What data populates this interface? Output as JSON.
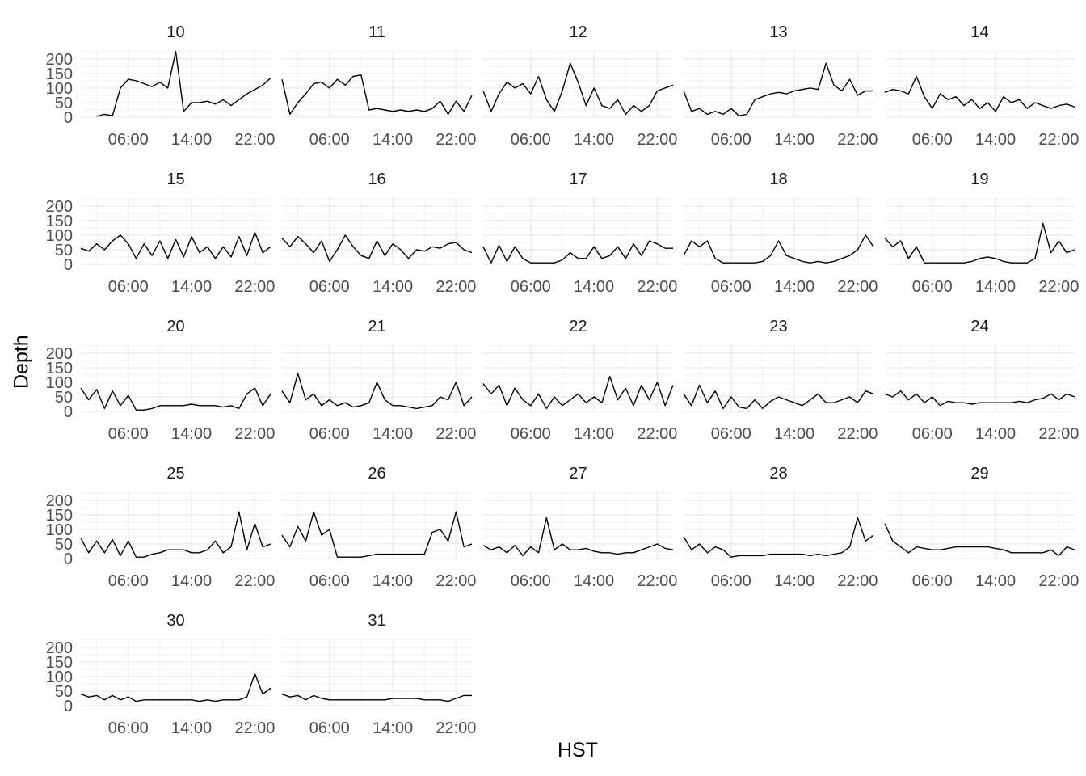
{
  "chart_data": {
    "type": "line",
    "title": "",
    "xlabel": "HST",
    "ylabel": "Depth",
    "grid": true,
    "legend": "none",
    "ylim": [
      0,
      230
    ],
    "yticks": [
      0,
      50,
      100,
      150,
      200
    ],
    "xlim": [
      0,
      24
    ],
    "xticks": [
      6,
      14,
      22
    ],
    "xtick_labels": [
      "06:00",
      "14:00",
      "22:00"
    ],
    "line_color": "#000000",
    "panels": [
      {
        "label": "10",
        "x": [
          0,
          1,
          2,
          3,
          4,
          5,
          6,
          7,
          8,
          9,
          10,
          11,
          12,
          13,
          14,
          15,
          16,
          17,
          18,
          19,
          20,
          21,
          22,
          23,
          24
        ],
        "y": [
          null,
          null,
          3,
          10,
          5,
          100,
          130,
          125,
          115,
          105,
          120,
          100,
          225,
          20,
          50,
          50,
          55,
          45,
          60,
          40,
          60,
          80,
          95,
          110,
          135
        ]
      },
      {
        "label": "11",
        "x": [
          0,
          1,
          2,
          3,
          4,
          5,
          6,
          7,
          8,
          9,
          10,
          11,
          12,
          13,
          14,
          15,
          16,
          17,
          18,
          19,
          20,
          21,
          22,
          23,
          24
        ],
        "y": [
          130,
          10,
          50,
          80,
          115,
          120,
          100,
          130,
          110,
          140,
          145,
          25,
          30,
          25,
          20,
          25,
          20,
          25,
          20,
          30,
          55,
          10,
          55,
          20,
          75
        ]
      },
      {
        "label": "12",
        "x": [
          0,
          1,
          2,
          3,
          4,
          5,
          6,
          7,
          8,
          9,
          10,
          11,
          12,
          13,
          14,
          15,
          16,
          17,
          18,
          19,
          20,
          21,
          22,
          23,
          24
        ],
        "y": [
          90,
          20,
          80,
          120,
          100,
          115,
          80,
          140,
          60,
          20,
          90,
          185,
          120,
          40,
          100,
          40,
          30,
          60,
          10,
          40,
          20,
          40,
          90,
          100,
          110
        ]
      },
      {
        "label": "13",
        "x": [
          0,
          1,
          2,
          3,
          4,
          5,
          6,
          7,
          8,
          9,
          10,
          11,
          12,
          13,
          14,
          15,
          16,
          17,
          18,
          19,
          20,
          21,
          22,
          23,
          24
        ],
        "y": [
          90,
          20,
          30,
          10,
          20,
          10,
          30,
          5,
          10,
          60,
          70,
          80,
          85,
          80,
          90,
          95,
          100,
          95,
          185,
          110,
          90,
          130,
          75,
          90,
          90
        ]
      },
      {
        "label": "14",
        "x": [
          0,
          1,
          2,
          3,
          4,
          5,
          6,
          7,
          8,
          9,
          10,
          11,
          12,
          13,
          14,
          15,
          16,
          17,
          18,
          19,
          20,
          21,
          22,
          23,
          24
        ],
        "y": [
          85,
          95,
          90,
          80,
          140,
          70,
          30,
          80,
          60,
          70,
          40,
          60,
          30,
          50,
          20,
          70,
          50,
          60,
          30,
          50,
          40,
          30,
          40,
          45,
          35
        ]
      },
      {
        "label": "15",
        "x": [
          0,
          1,
          2,
          3,
          4,
          5,
          6,
          7,
          8,
          9,
          10,
          11,
          12,
          13,
          14,
          15,
          16,
          17,
          18,
          19,
          20,
          21,
          22,
          23,
          24
        ],
        "y": [
          55,
          45,
          70,
          50,
          80,
          100,
          70,
          20,
          70,
          30,
          80,
          20,
          85,
          25,
          95,
          40,
          60,
          20,
          60,
          25,
          95,
          30,
          110,
          40,
          60
        ]
      },
      {
        "label": "16",
        "x": [
          0,
          1,
          2,
          3,
          4,
          5,
          6,
          7,
          8,
          9,
          10,
          11,
          12,
          13,
          14,
          15,
          16,
          17,
          18,
          19,
          20,
          21,
          22,
          23,
          24
        ],
        "y": [
          90,
          60,
          95,
          70,
          40,
          80,
          10,
          50,
          100,
          60,
          30,
          20,
          80,
          30,
          70,
          50,
          20,
          50,
          45,
          60,
          55,
          70,
          75,
          50,
          40
        ]
      },
      {
        "label": "17",
        "x": [
          0,
          1,
          2,
          3,
          4,
          5,
          6,
          7,
          8,
          9,
          10,
          11,
          12,
          13,
          14,
          15,
          16,
          17,
          18,
          19,
          20,
          21,
          22,
          23,
          24
        ],
        "y": [
          60,
          5,
          65,
          10,
          60,
          20,
          5,
          5,
          5,
          5,
          15,
          40,
          20,
          20,
          60,
          20,
          30,
          60,
          20,
          70,
          30,
          80,
          70,
          55,
          55
        ]
      },
      {
        "label": "18",
        "x": [
          0,
          1,
          2,
          3,
          4,
          5,
          6,
          7,
          8,
          9,
          10,
          11,
          12,
          13,
          14,
          15,
          16,
          17,
          18,
          19,
          20,
          21,
          22,
          23,
          24
        ],
        "y": [
          30,
          80,
          60,
          80,
          20,
          5,
          5,
          5,
          5,
          5,
          10,
          30,
          80,
          30,
          20,
          10,
          5,
          10,
          5,
          10,
          20,
          30,
          50,
          100,
          60
        ]
      },
      {
        "label": "19",
        "x": [
          0,
          1,
          2,
          3,
          4,
          5,
          6,
          7,
          8,
          9,
          10,
          11,
          12,
          13,
          14,
          15,
          16,
          17,
          18,
          19,
          20,
          21,
          22,
          23,
          24
        ],
        "y": [
          90,
          60,
          80,
          20,
          60,
          5,
          5,
          5,
          5,
          5,
          5,
          10,
          20,
          25,
          20,
          10,
          5,
          5,
          5,
          20,
          140,
          40,
          80,
          40,
          50
        ]
      },
      {
        "label": "20",
        "x": [
          0,
          1,
          2,
          3,
          4,
          5,
          6,
          7,
          8,
          9,
          10,
          11,
          12,
          13,
          14,
          15,
          16,
          17,
          18,
          19,
          20,
          21,
          22,
          23,
          24
        ],
        "y": [
          80,
          40,
          75,
          10,
          70,
          20,
          55,
          5,
          5,
          10,
          20,
          20,
          20,
          20,
          25,
          20,
          20,
          20,
          15,
          20,
          10,
          60,
          80,
          20,
          60
        ]
      },
      {
        "label": "21",
        "x": [
          0,
          1,
          2,
          3,
          4,
          5,
          6,
          7,
          8,
          9,
          10,
          11,
          12,
          13,
          14,
          15,
          16,
          17,
          18,
          19,
          20,
          21,
          22,
          23,
          24
        ],
        "y": [
          70,
          30,
          130,
          40,
          60,
          20,
          40,
          20,
          30,
          15,
          20,
          30,
          100,
          40,
          20,
          20,
          15,
          10,
          15,
          20,
          50,
          40,
          100,
          20,
          50
        ]
      },
      {
        "label": "22",
        "x": [
          0,
          1,
          2,
          3,
          4,
          5,
          6,
          7,
          8,
          9,
          10,
          11,
          12,
          13,
          14,
          15,
          16,
          17,
          18,
          19,
          20,
          21,
          22,
          23,
          24
        ],
        "y": [
          95,
          60,
          90,
          20,
          80,
          40,
          20,
          60,
          10,
          50,
          20,
          40,
          60,
          30,
          50,
          30,
          120,
          40,
          80,
          20,
          90,
          40,
          100,
          20,
          90
        ]
      },
      {
        "label": "23",
        "x": [
          0,
          1,
          2,
          3,
          4,
          5,
          6,
          7,
          8,
          9,
          10,
          11,
          12,
          13,
          14,
          15,
          16,
          17,
          18,
          19,
          20,
          21,
          22,
          23,
          24
        ],
        "y": [
          60,
          20,
          90,
          30,
          70,
          10,
          50,
          15,
          10,
          40,
          10,
          35,
          50,
          40,
          30,
          20,
          40,
          60,
          30,
          30,
          40,
          50,
          30,
          70,
          60
        ]
      },
      {
        "label": "24",
        "x": [
          0,
          1,
          2,
          3,
          4,
          5,
          6,
          7,
          8,
          9,
          10,
          11,
          12,
          13,
          14,
          15,
          16,
          17,
          18,
          19,
          20,
          21,
          22,
          23,
          24
        ],
        "y": [
          60,
          50,
          70,
          40,
          60,
          30,
          50,
          20,
          35,
          30,
          30,
          25,
          30,
          30,
          30,
          30,
          30,
          35,
          30,
          40,
          45,
          60,
          40,
          60,
          50
        ]
      },
      {
        "label": "25",
        "x": [
          0,
          1,
          2,
          3,
          4,
          5,
          6,
          7,
          8,
          9,
          10,
          11,
          12,
          13,
          14,
          15,
          16,
          17,
          18,
          19,
          20,
          21,
          22,
          23,
          24
        ],
        "y": [
          70,
          20,
          60,
          20,
          65,
          10,
          60,
          5,
          5,
          15,
          20,
          30,
          30,
          30,
          20,
          20,
          30,
          60,
          20,
          40,
          160,
          30,
          120,
          40,
          50
        ]
      },
      {
        "label": "26",
        "x": [
          0,
          1,
          2,
          3,
          4,
          5,
          6,
          7,
          8,
          9,
          10,
          11,
          12,
          13,
          14,
          15,
          16,
          17,
          18,
          19,
          20,
          21,
          22,
          23,
          24
        ],
        "y": [
          80,
          40,
          110,
          60,
          160,
          80,
          100,
          5,
          5,
          5,
          5,
          10,
          15,
          15,
          15,
          15,
          15,
          15,
          15,
          90,
          100,
          60,
          160,
          40,
          50
        ]
      },
      {
        "label": "27",
        "x": [
          0,
          1,
          2,
          3,
          4,
          5,
          6,
          7,
          8,
          9,
          10,
          11,
          12,
          13,
          14,
          15,
          16,
          17,
          18,
          19,
          20,
          21,
          22,
          23,
          24
        ],
        "y": [
          45,
          30,
          40,
          20,
          45,
          10,
          40,
          20,
          140,
          30,
          50,
          30,
          30,
          35,
          25,
          20,
          20,
          15,
          20,
          20,
          30,
          40,
          50,
          35,
          30
        ]
      },
      {
        "label": "28",
        "x": [
          0,
          1,
          2,
          3,
          4,
          5,
          6,
          7,
          8,
          9,
          10,
          11,
          12,
          13,
          14,
          15,
          16,
          17,
          18,
          19,
          20,
          21,
          22,
          23,
          24
        ],
        "y": [
          75,
          30,
          50,
          20,
          40,
          30,
          5,
          10,
          10,
          10,
          10,
          15,
          15,
          15,
          15,
          15,
          10,
          15,
          10,
          15,
          20,
          40,
          140,
          60,
          80
        ]
      },
      {
        "label": "29",
        "x": [
          0,
          1,
          2,
          3,
          4,
          5,
          6,
          7,
          8,
          9,
          10,
          11,
          12,
          13,
          14,
          15,
          16,
          17,
          18,
          19,
          20,
          21,
          22,
          23,
          24
        ],
        "y": [
          120,
          60,
          40,
          20,
          40,
          35,
          30,
          30,
          35,
          40,
          40,
          40,
          40,
          40,
          35,
          30,
          20,
          20,
          20,
          20,
          20,
          30,
          10,
          40,
          30
        ]
      },
      {
        "label": "30",
        "x": [
          0,
          1,
          2,
          3,
          4,
          5,
          6,
          7,
          8,
          9,
          10,
          11,
          12,
          13,
          14,
          15,
          16,
          17,
          18,
          19,
          20,
          21,
          22,
          23,
          24
        ],
        "y": [
          40,
          30,
          35,
          20,
          35,
          20,
          30,
          15,
          20,
          20,
          20,
          20,
          20,
          20,
          20,
          15,
          20,
          15,
          20,
          20,
          20,
          30,
          110,
          40,
          60
        ]
      },
      {
        "label": "31",
        "x": [
          0,
          1,
          2,
          3,
          4,
          5,
          6,
          7,
          8,
          9,
          10,
          11,
          12,
          13,
          14,
          15,
          16,
          17,
          18,
          19,
          20,
          21,
          22,
          23,
          24
        ],
        "y": [
          40,
          30,
          35,
          20,
          35,
          25,
          20,
          20,
          20,
          20,
          20,
          20,
          20,
          20,
          25,
          25,
          25,
          25,
          20,
          20,
          20,
          15,
          25,
          35,
          35
        ]
      }
    ]
  }
}
